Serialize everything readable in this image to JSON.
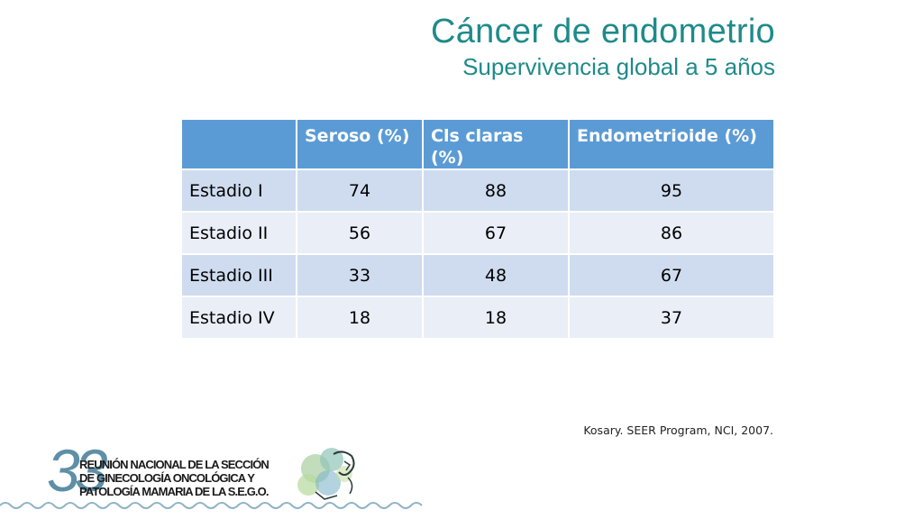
{
  "title": {
    "main": "Cáncer de endometrio",
    "sub": "Supervivencia global a 5 años"
  },
  "table": {
    "headers": [
      "",
      "Seroso (%)",
      "Cls claras (%)",
      "Endometrioide (%)"
    ],
    "rows": [
      {
        "label": "Estadio I",
        "values": [
          "74",
          "88",
          "95"
        ]
      },
      {
        "label": "Estadio II",
        "values": [
          "56",
          "67",
          "86"
        ]
      },
      {
        "label": "Estadio III",
        "values": [
          "33",
          "48",
          "67"
        ]
      },
      {
        "label": "Estadio IV",
        "values": [
          "18",
          "18",
          "37"
        ]
      }
    ]
  },
  "source": "Kosary. SEER Program, NCI, 2007.",
  "logo": {
    "number": "33",
    "line1": "REUNIÓN NACIONAL DE LA SECCIÓN",
    "line2": "DE GINECOLOGÍA ONCOLÓGICA Y",
    "line3": "PATOLOGÍA MAMARIA DE LA S.E.G.O."
  },
  "colors": {
    "title": "#1f8a8a",
    "header_bg": "#5b9bd5",
    "row_odd": "#cfdcef",
    "row_even": "#e9eef7",
    "logo_accent": "#5e8fa6"
  }
}
